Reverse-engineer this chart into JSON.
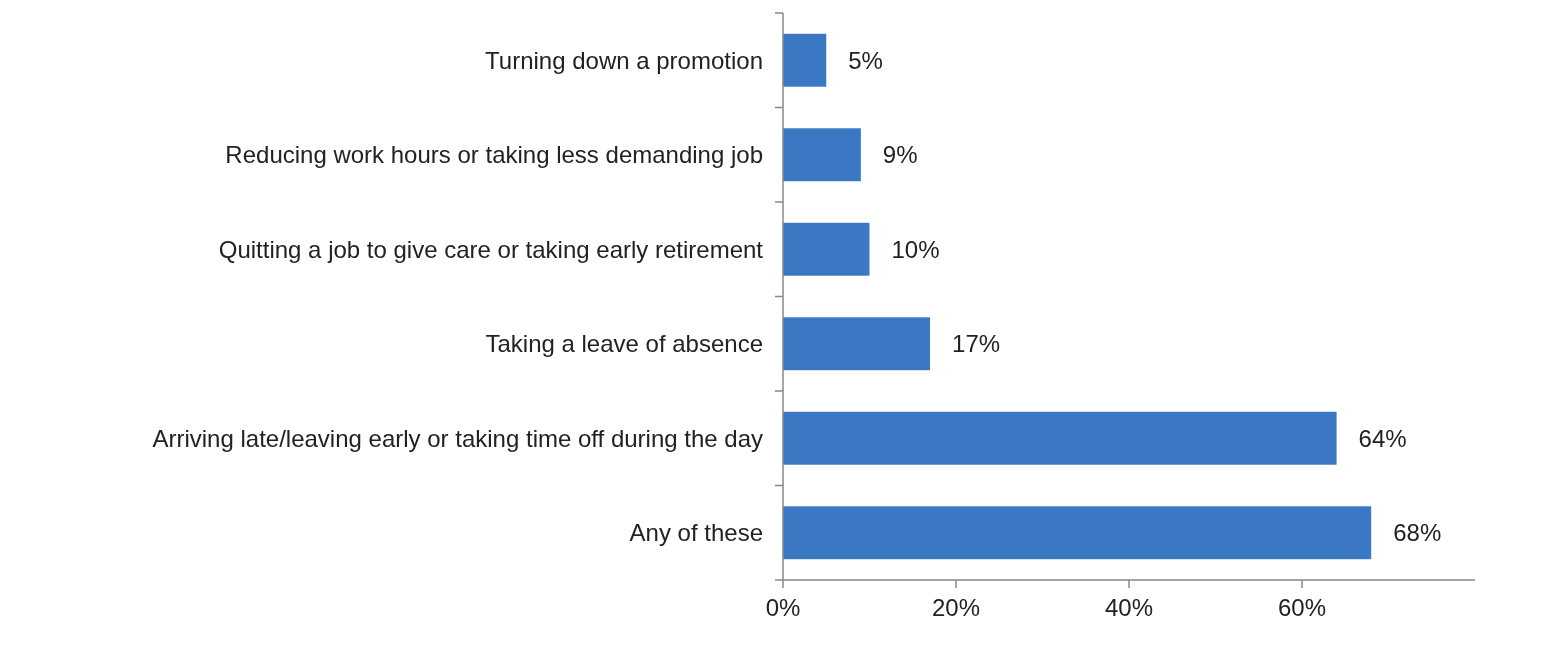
{
  "chart_data": {
    "type": "bar",
    "orientation": "horizontal",
    "categories": [
      "Turning down a promotion",
      "Reducing work hours or taking less demanding job",
      "Quitting a job to give care or taking early retirement",
      "Taking a leave of absence",
      "Arriving late/leaving early or taking time off during the day",
      "Any of these"
    ],
    "values": [
      5,
      9,
      10,
      17,
      64,
      68
    ],
    "color": "#3b78c4",
    "xlim": [
      0,
      80
    ],
    "xticks": [
      {
        "value": 0,
        "label": "0%"
      },
      {
        "value": 20,
        "label": "20%"
      },
      {
        "value": 40,
        "label": "40%"
      },
      {
        "value": 60,
        "label": "60%"
      }
    ],
    "value_labels": [
      "5%",
      "9%",
      "10%",
      "17%",
      "64%",
      "68%"
    ],
    "grid": false
  }
}
